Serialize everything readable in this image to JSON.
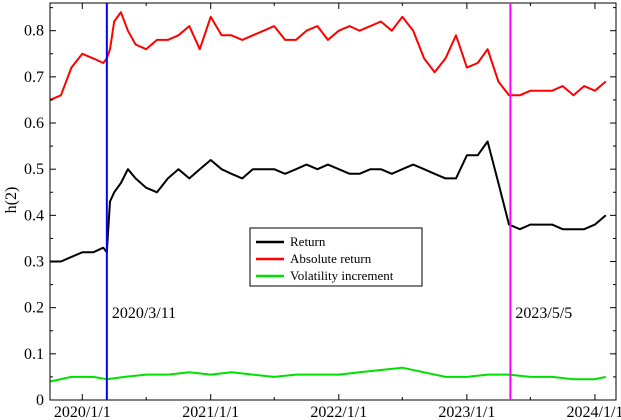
{
  "chart_data": {
    "type": "line",
    "ylabel": "h(2)",
    "xlabel": "",
    "title": "",
    "ylim": [
      0,
      0.86
    ],
    "xlim": [
      "2019-10-01",
      "2024-03-01"
    ],
    "y_ticks": [
      "0",
      "0.1",
      "0.2",
      "0.3",
      "0.4",
      "0.5",
      "0.6",
      "0.7",
      "0.8"
    ],
    "x_ticks": [
      {
        "date": "2020-01-01",
        "label": "2020/1/1"
      },
      {
        "date": "2021-01-01",
        "label": "2021/1/1"
      },
      {
        "date": "2022-01-01",
        "label": "2022/1/1"
      },
      {
        "date": "2023-01-01",
        "label": "2023/1/1"
      },
      {
        "date": "2024-01-01",
        "label": "2024/1/1"
      }
    ],
    "legend_position": "center",
    "grid": false,
    "markers": [
      {
        "date": "2020-03-11",
        "label": "2020/3/11",
        "color": "#0000ff"
      },
      {
        "date": "2023-05-05",
        "label": "2023/5/5",
        "color": "#ff00ff"
      }
    ],
    "series": [
      {
        "name": "Return",
        "color": "#000000",
        "x": [
          "2019-10-01",
          "2019-11-01",
          "2019-12-01",
          "2020-01-01",
          "2020-02-01",
          "2020-03-01",
          "2020-03-11",
          "2020-03-20",
          "2020-04-01",
          "2020-04-20",
          "2020-05-10",
          "2020-06-01",
          "2020-07-01",
          "2020-08-01",
          "2020-09-01",
          "2020-10-01",
          "2020-11-01",
          "2020-12-01",
          "2021-01-01",
          "2021-02-01",
          "2021-03-01",
          "2021-04-01",
          "2021-05-01",
          "2021-06-01",
          "2021-07-01",
          "2021-08-01",
          "2021-09-01",
          "2021-10-01",
          "2021-11-01",
          "2021-12-01",
          "2022-01-01",
          "2022-02-01",
          "2022-03-01",
          "2022-04-01",
          "2022-05-01",
          "2022-06-01",
          "2022-07-01",
          "2022-08-01",
          "2022-09-01",
          "2022-10-01",
          "2022-11-01",
          "2022-12-01",
          "2023-01-01",
          "2023-02-01",
          "2023-03-01",
          "2023-04-01",
          "2023-05-01",
          "2023-06-01",
          "2023-07-01",
          "2023-08-01",
          "2023-09-01",
          "2023-10-01",
          "2023-11-01",
          "2023-12-01",
          "2024-01-01",
          "2024-02-01"
        ],
        "y": [
          0.3,
          0.3,
          0.31,
          0.32,
          0.32,
          0.33,
          0.32,
          0.43,
          0.45,
          0.47,
          0.5,
          0.48,
          0.46,
          0.45,
          0.48,
          0.5,
          0.48,
          0.5,
          0.52,
          0.5,
          0.49,
          0.48,
          0.5,
          0.5,
          0.5,
          0.49,
          0.5,
          0.51,
          0.5,
          0.51,
          0.5,
          0.49,
          0.49,
          0.5,
          0.5,
          0.49,
          0.5,
          0.51,
          0.5,
          0.49,
          0.48,
          0.48,
          0.53,
          0.53,
          0.56,
          0.47,
          0.38,
          0.37,
          0.38,
          0.38,
          0.38,
          0.37,
          0.37,
          0.37,
          0.38,
          0.4
        ]
      },
      {
        "name": "Absolute return",
        "color": "#ff0000",
        "x": [
          "2019-10-01",
          "2019-11-01",
          "2019-12-01",
          "2020-01-01",
          "2020-02-01",
          "2020-03-01",
          "2020-03-11",
          "2020-03-20",
          "2020-04-01",
          "2020-04-20",
          "2020-05-10",
          "2020-06-01",
          "2020-07-01",
          "2020-08-01",
          "2020-09-01",
          "2020-10-01",
          "2020-11-01",
          "2020-12-01",
          "2021-01-01",
          "2021-02-01",
          "2021-03-01",
          "2021-04-01",
          "2021-05-01",
          "2021-06-01",
          "2021-07-01",
          "2021-08-01",
          "2021-09-01",
          "2021-10-01",
          "2021-11-01",
          "2021-12-01",
          "2022-01-01",
          "2022-02-01",
          "2022-03-01",
          "2022-04-01",
          "2022-05-01",
          "2022-06-01",
          "2022-07-01",
          "2022-08-01",
          "2022-09-01",
          "2022-10-01",
          "2022-11-01",
          "2022-12-01",
          "2023-01-01",
          "2023-02-01",
          "2023-03-01",
          "2023-04-01",
          "2023-05-01",
          "2023-06-01",
          "2023-07-01",
          "2023-08-01",
          "2023-09-01",
          "2023-10-01",
          "2023-11-01",
          "2023-12-01",
          "2024-01-01",
          "2024-02-01"
        ],
        "y": [
          0.65,
          0.66,
          0.72,
          0.75,
          0.74,
          0.73,
          0.74,
          0.76,
          0.82,
          0.84,
          0.8,
          0.77,
          0.76,
          0.78,
          0.78,
          0.79,
          0.81,
          0.76,
          0.83,
          0.79,
          0.79,
          0.78,
          0.79,
          0.8,
          0.81,
          0.78,
          0.78,
          0.8,
          0.81,
          0.78,
          0.8,
          0.81,
          0.8,
          0.81,
          0.82,
          0.8,
          0.83,
          0.8,
          0.74,
          0.71,
          0.74,
          0.79,
          0.72,
          0.73,
          0.76,
          0.69,
          0.66,
          0.66,
          0.67,
          0.67,
          0.67,
          0.68,
          0.66,
          0.68,
          0.67,
          0.69
        ]
      },
      {
        "name": "Volatility increment",
        "color": "#00e000",
        "x": [
          "2019-10-01",
          "2019-12-01",
          "2020-02-01",
          "2020-03-11",
          "2020-05-01",
          "2020-07-01",
          "2020-09-01",
          "2020-11-01",
          "2021-01-01",
          "2021-03-01",
          "2021-05-01",
          "2021-07-01",
          "2021-09-01",
          "2021-11-01",
          "2022-01-01",
          "2022-03-01",
          "2022-05-01",
          "2022-07-01",
          "2022-09-01",
          "2022-11-01",
          "2023-01-01",
          "2023-03-01",
          "2023-05-01",
          "2023-07-01",
          "2023-09-01",
          "2023-11-01",
          "2024-01-01",
          "2024-02-01"
        ],
        "y": [
          0.04,
          0.05,
          0.05,
          0.045,
          0.05,
          0.055,
          0.055,
          0.06,
          0.055,
          0.06,
          0.055,
          0.05,
          0.055,
          0.055,
          0.055,
          0.06,
          0.065,
          0.07,
          0.06,
          0.05,
          0.05,
          0.055,
          0.055,
          0.05,
          0.05,
          0.045,
          0.045,
          0.05
        ]
      }
    ]
  }
}
